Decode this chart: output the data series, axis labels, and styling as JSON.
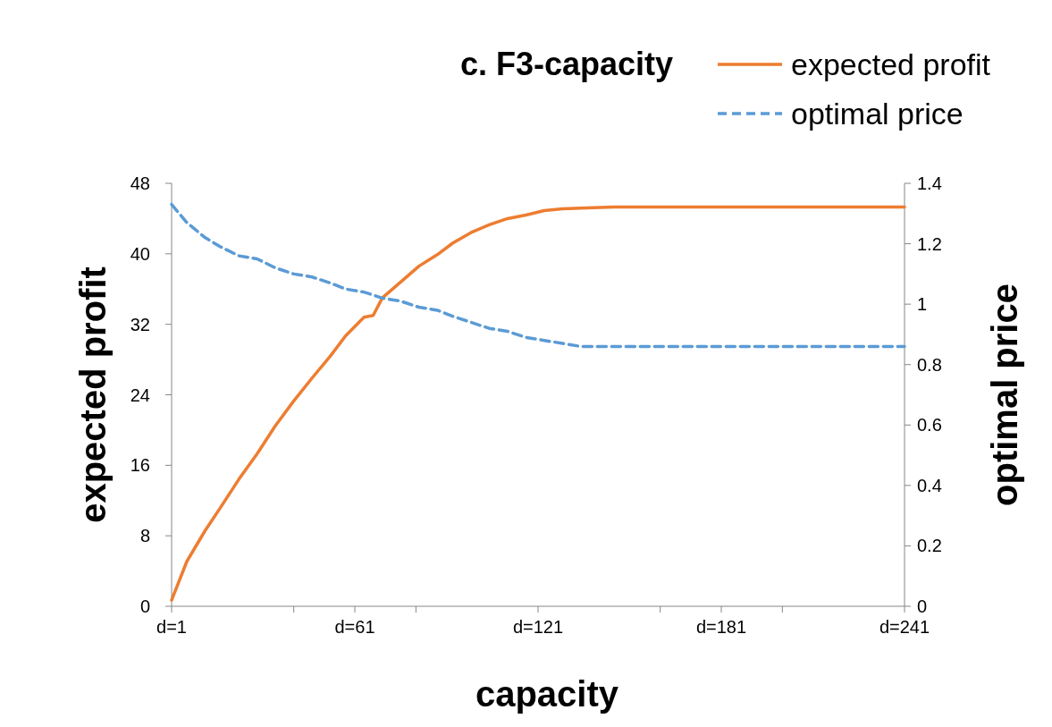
{
  "chart_data": {
    "type": "line",
    "title": "c. F3-capacity",
    "xlabel": "capacity",
    "ylabel": "expected profit",
    "y2label": "optimal price",
    "xlim": [
      1,
      241
    ],
    "xticks": [
      {
        "value": 1,
        "label": "d=1"
      },
      {
        "value": 41,
        "label": null
      },
      {
        "value": 61,
        "label": "d=61"
      },
      {
        "value": 81,
        "label": null
      },
      {
        "value": 121,
        "label": "d=121"
      },
      {
        "value": 161,
        "label": null
      },
      {
        "value": 181,
        "label": "d=181"
      },
      {
        "value": 201,
        "label": null
      },
      {
        "value": 241,
        "label": "d=241"
      }
    ],
    "ylim": [
      0,
      48
    ],
    "yticks": [
      0,
      8,
      16,
      24,
      32,
      40,
      48
    ],
    "y2lim": [
      0,
      1.4
    ],
    "y2ticks": [
      0,
      {
        "value": 0.2,
        "label": "0.2"
      },
      {
        "value": 0.4,
        "label": "0.4"
      },
      {
        "value": 0.6,
        "label": "0.6"
      },
      {
        "value": 0.8,
        "label": "0.8"
      },
      1,
      {
        "value": 1.2,
        "label": "1.2"
      },
      {
        "value": 1.4,
        "label": "1.4"
      }
    ],
    "grid": false,
    "legend": "top right",
    "marker": "none",
    "series": [
      {
        "name": "expected profit",
        "color": "#ed7d31",
        "line_style": "solid",
        "x": [
          1,
          6,
          12,
          17,
          23,
          29,
          35,
          41,
          47,
          53,
          58,
          64,
          67,
          70,
          76,
          82,
          88,
          93,
          99,
          105,
          111,
          117,
          123,
          129,
          137,
          146,
          241
        ],
        "values": [
          0.7,
          5.1,
          8.6,
          11.2,
          14.4,
          17.3,
          20.5,
          23.3,
          25.9,
          28.4,
          30.7,
          32.8,
          33,
          35,
          36.8,
          38.6,
          39.9,
          41.2,
          42.4,
          43.3,
          44,
          44.4,
          44.9,
          45.1,
          45.2,
          45.3,
          45.3
        ]
      },
      {
        "name": "optimal price",
        "color": "#5b9bd5",
        "line_style": "dashed",
        "axis": "y2",
        "x": [
          1,
          6,
          12,
          17,
          23,
          29,
          35,
          41,
          47,
          53,
          58,
          64,
          70,
          76,
          82,
          88,
          93,
          99,
          105,
          111,
          117,
          123,
          129,
          135,
          241
        ],
        "values": [
          1.33,
          1.27,
          1.22,
          1.19,
          1.16,
          1.15,
          1.12,
          1.1,
          1.09,
          1.07,
          1.05,
          1.04,
          1.02,
          1.01,
          0.99,
          0.98,
          0.96,
          0.94,
          0.92,
          0.91,
          0.89,
          0.88,
          0.87,
          0.86,
          0.86
        ]
      }
    ]
  }
}
